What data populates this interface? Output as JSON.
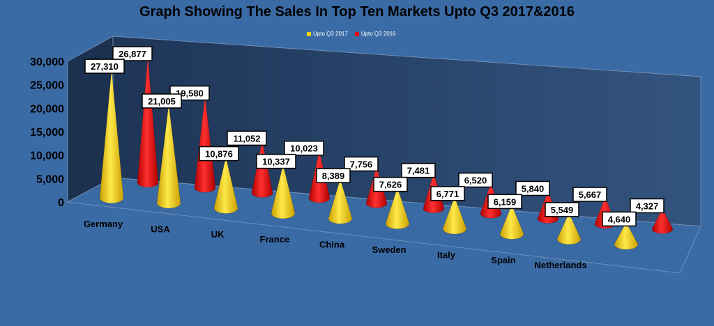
{
  "chart_data": {
    "type": "bar",
    "style": "3d-cone",
    "title": "Graph Showing The Sales In Top Ten Markets Upto Q3 2017&2016",
    "categories": [
      "Germany",
      "USA",
      "UK",
      "France",
      "China",
      "Sweden",
      "Italy",
      "Spain",
      "Netherlands",
      ""
    ],
    "series": [
      {
        "name": "Upto Q3 2017",
        "color": "#ffd700",
        "values": [
          27310,
          21005,
          10876,
          10337,
          8389,
          7626,
          6771,
          6159,
          5549,
          4640
        ]
      },
      {
        "name": "Upto Q3 2016",
        "color": "#ff0000",
        "values": [
          26877,
          19580,
          11052,
          10023,
          7756,
          7481,
          6520,
          5840,
          5667,
          4327
        ]
      }
    ],
    "ylim": [
      0,
      30000
    ],
    "yticks": [
      "0",
      "5,000",
      "10,000",
      "15,000",
      "20,000",
      "25,000",
      "30,000"
    ],
    "legend_position": "top"
  }
}
